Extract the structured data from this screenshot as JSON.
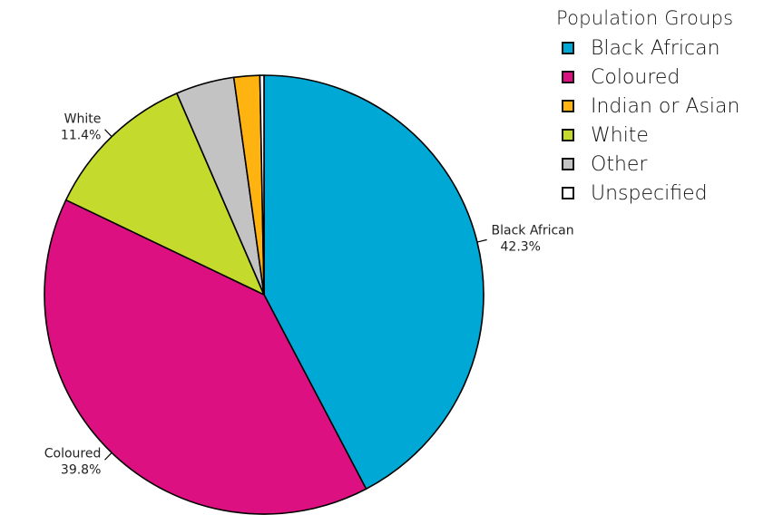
{
  "chart_data": {
    "type": "pie",
    "legend_title": "Population Groups",
    "legend_placement": "top-right",
    "slices": [
      {
        "name": "Black African",
        "value": 42.3,
        "label": "42.3%",
        "color": "#00a9d5",
        "show_label": true
      },
      {
        "name": "Coloured",
        "value": 39.8,
        "label": "39.8%",
        "color": "#dd1081",
        "show_label": true
      },
      {
        "name": "Indian or Asian",
        "value": 1.9,
        "label": "",
        "color": "#ffb311",
        "show_label": false
      },
      {
        "name": "White",
        "value": 11.4,
        "label": "11.4%",
        "color": "#c4da2c",
        "show_label": true
      },
      {
        "name": "Other",
        "value": 4.3,
        "label": "",
        "color": "#c3c3c3",
        "show_label": false
      },
      {
        "name": "Unspecified",
        "value": 0.3,
        "label": "",
        "color": "#ffffff",
        "show_label": false
      }
    ],
    "draw_order": [
      "Black African",
      "Coloured",
      "White",
      "Other",
      "Indian or Asian",
      "Unspecified"
    ]
  }
}
